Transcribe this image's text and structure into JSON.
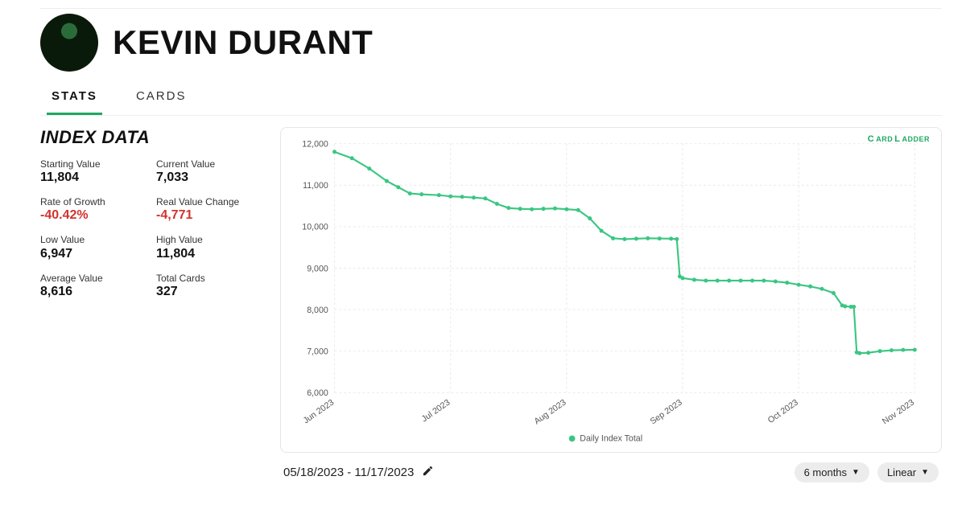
{
  "header": {
    "title": "KEVIN DURANT"
  },
  "tabs": {
    "stats": "STATS",
    "cards": "CARDS",
    "active": "stats"
  },
  "index": {
    "heading": "INDEX DATA",
    "stats": [
      {
        "label": "Starting Value",
        "value": "11,804",
        "neg": false
      },
      {
        "label": "Current Value",
        "value": "7,033",
        "neg": false
      },
      {
        "label": "Rate of Growth",
        "value": "-40.42%",
        "neg": true
      },
      {
        "label": "Real Value Change",
        "value": "-4,771",
        "neg": true
      },
      {
        "label": "Low Value",
        "value": "6,947",
        "neg": false
      },
      {
        "label": "High Value",
        "value": "11,804",
        "neg": false
      },
      {
        "label": "Average Value",
        "value": "8,616",
        "neg": false
      },
      {
        "label": "Total Cards",
        "value": "327",
        "neg": false
      }
    ]
  },
  "chart": {
    "type": "line",
    "legend_label": "Daily Index Total",
    "watermark": "CARD LADDER",
    "ylim": [
      6000,
      12000
    ],
    "ytick_step": 1000,
    "yticks_labels": [
      "6,000",
      "7,000",
      "8,000",
      "9,000",
      "10,000",
      "11,000",
      "12,000"
    ],
    "xlabels": [
      "Jun 2023",
      "Jul 2023",
      "Aug 2023",
      "Sep 2023",
      "Oct 2023",
      "Nov 2023"
    ],
    "line_color": "#3ac682",
    "grid_color": "#e9e9e9",
    "background_color": "#ffffff",
    "title_fontsize": 11,
    "marker_radius": 2.6,
    "line_width": 2.2,
    "series": [
      {
        "x": 0.0,
        "y": 11804
      },
      {
        "x": 0.03,
        "y": 11650
      },
      {
        "x": 0.06,
        "y": 11400
      },
      {
        "x": 0.09,
        "y": 11100
      },
      {
        "x": 0.11,
        "y": 10950
      },
      {
        "x": 0.13,
        "y": 10800
      },
      {
        "x": 0.15,
        "y": 10780
      },
      {
        "x": 0.18,
        "y": 10760
      },
      {
        "x": 0.2,
        "y": 10730
      },
      {
        "x": 0.22,
        "y": 10720
      },
      {
        "x": 0.24,
        "y": 10700
      },
      {
        "x": 0.26,
        "y": 10680
      },
      {
        "x": 0.28,
        "y": 10550
      },
      {
        "x": 0.3,
        "y": 10450
      },
      {
        "x": 0.32,
        "y": 10430
      },
      {
        "x": 0.34,
        "y": 10420
      },
      {
        "x": 0.36,
        "y": 10430
      },
      {
        "x": 0.38,
        "y": 10440
      },
      {
        "x": 0.4,
        "y": 10420
      },
      {
        "x": 0.42,
        "y": 10400
      },
      {
        "x": 0.44,
        "y": 10200
      },
      {
        "x": 0.46,
        "y": 9900
      },
      {
        "x": 0.48,
        "y": 9720
      },
      {
        "x": 0.5,
        "y": 9700
      },
      {
        "x": 0.52,
        "y": 9710
      },
      {
        "x": 0.54,
        "y": 9720
      },
      {
        "x": 0.56,
        "y": 9715
      },
      {
        "x": 0.58,
        "y": 9710
      },
      {
        "x": 0.59,
        "y": 9700
      },
      {
        "x": 0.595,
        "y": 8800
      },
      {
        "x": 0.6,
        "y": 8760
      },
      {
        "x": 0.62,
        "y": 8720
      },
      {
        "x": 0.64,
        "y": 8700
      },
      {
        "x": 0.66,
        "y": 8700
      },
      {
        "x": 0.68,
        "y": 8700
      },
      {
        "x": 0.7,
        "y": 8700
      },
      {
        "x": 0.72,
        "y": 8700
      },
      {
        "x": 0.74,
        "y": 8700
      },
      {
        "x": 0.76,
        "y": 8680
      },
      {
        "x": 0.78,
        "y": 8650
      },
      {
        "x": 0.8,
        "y": 8600
      },
      {
        "x": 0.82,
        "y": 8560
      },
      {
        "x": 0.84,
        "y": 8500
      },
      {
        "x": 0.86,
        "y": 8400
      },
      {
        "x": 0.875,
        "y": 8100
      },
      {
        "x": 0.88,
        "y": 8080
      },
      {
        "x": 0.89,
        "y": 8070
      },
      {
        "x": 0.895,
        "y": 8070
      },
      {
        "x": 0.9,
        "y": 6970
      },
      {
        "x": 0.905,
        "y": 6950
      },
      {
        "x": 0.92,
        "y": 6960
      },
      {
        "x": 0.94,
        "y": 7000
      },
      {
        "x": 0.96,
        "y": 7020
      },
      {
        "x": 0.98,
        "y": 7030
      },
      {
        "x": 1.0,
        "y": 7033
      }
    ]
  },
  "footer": {
    "date_range": "05/18/2023 - 11/17/2023",
    "range_selector": "6 months",
    "scale_selector": "Linear"
  }
}
